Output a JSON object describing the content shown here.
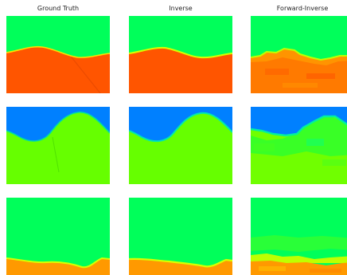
{
  "chart_data": {
    "type": "heatmap",
    "columns": [
      {
        "title": "Ground Truth"
      },
      {
        "title": "Inverse"
      },
      {
        "title": "Forward-Inverse"
      }
    ],
    "rows": 3,
    "colors": {
      "upper_green": "#00ff5a",
      "orange_red": "#ff5500",
      "orange": "#ff7a00",
      "blue": "#0080ff",
      "lime": "#66ff00",
      "light_orange": "#ff9900",
      "yellow_green": "#bfff00"
    },
    "axes": "off",
    "grid": false,
    "legend": "none"
  }
}
